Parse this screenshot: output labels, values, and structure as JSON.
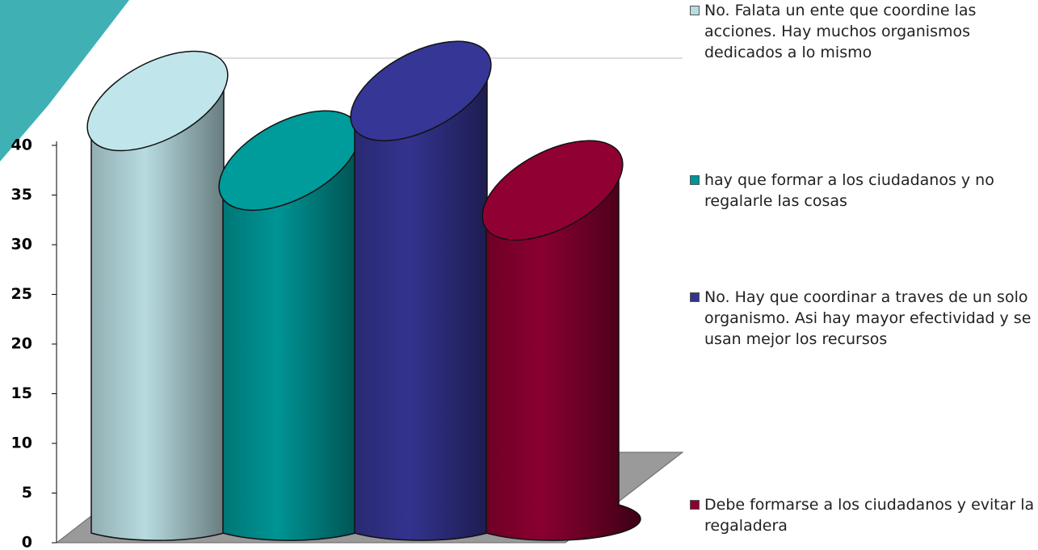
{
  "chart_data": {
    "type": "bar",
    "series": [
      {
        "name": "No. Falata un ente que coordine las acciones. Hay muchos organismos dedicados a lo mismo",
        "color": "#b7dbe0",
        "values": [
          40
        ]
      },
      {
        "name": "hay que formar a los ciudadanos y no regalarle  las cosas",
        "color": "#009494",
        "values": [
          34
        ]
      },
      {
        "name": "No. Hay que coordinar a traves de un solo organismo.  Asi hay mayor efectividad y se usan mejor los recursos",
        "color": "#33338f",
        "values": [
          41
        ]
      },
      {
        "name": "Debe formarse a los ciudadanos y evitar la regaladera",
        "color": "#8a0030",
        "values": [
          31
        ]
      }
    ],
    "ylim": [
      0,
      40
    ],
    "yticks": [
      0,
      5,
      10,
      15,
      20,
      25,
      30,
      35,
      40
    ]
  }
}
